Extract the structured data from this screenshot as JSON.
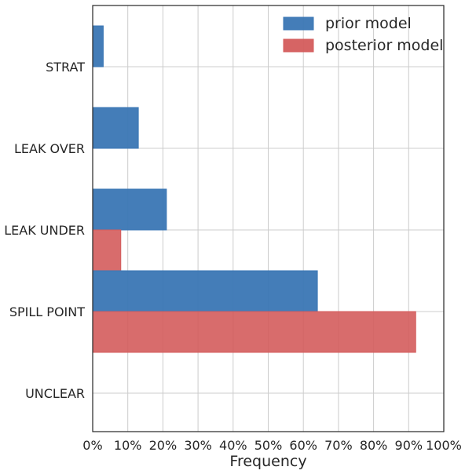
{
  "chart_data": {
    "type": "bar",
    "orientation": "horizontal",
    "categories": [
      "STRAT",
      "LEAK OVER",
      "LEAK UNDER",
      "SPILL POINT",
      "UNCLEAR"
    ],
    "series": [
      {
        "name": "prior model",
        "color": "#3a76b4",
        "values": [
          3,
          13,
          21,
          64,
          0
        ]
      },
      {
        "name": "posterior model",
        "color": "#d45c5c",
        "values": [
          0,
          0,
          8,
          92,
          0
        ]
      }
    ],
    "xlabel": "Frequency",
    "ylabel": "",
    "xlim": [
      0,
      100
    ],
    "xticks": [
      0,
      10,
      20,
      30,
      40,
      50,
      60,
      70,
      80,
      90,
      100
    ],
    "xtick_labels": [
      "0%",
      "10%",
      "20%",
      "30%",
      "40%",
      "50%",
      "60%",
      "70%",
      "80%",
      "90%",
      "100%"
    ],
    "grid": true,
    "legend_position": "top-right"
  }
}
